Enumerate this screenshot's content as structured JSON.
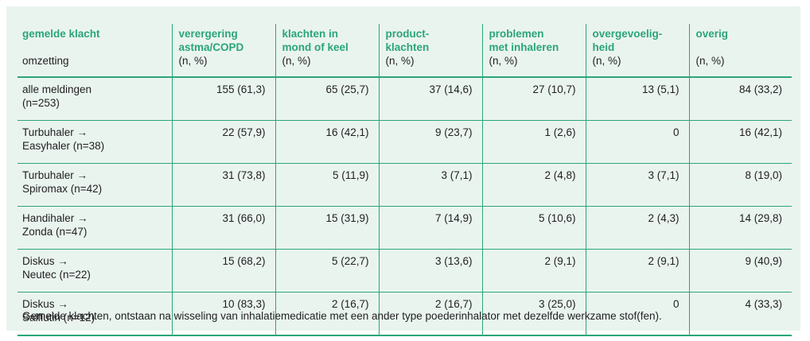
{
  "header": {
    "col0_label": "gemelde klacht",
    "col0_sub": "omzetting",
    "columns": [
      {
        "label_line1": "verergering",
        "label_line2": "astma/COPD",
        "unit": "(n, %)"
      },
      {
        "label_line1": "klachten in",
        "label_line2": "mond of keel",
        "unit": "(n, %)"
      },
      {
        "label_line1": "product-",
        "label_line2": "klachten",
        "unit": "(n, %)"
      },
      {
        "label_line1": "problemen",
        "label_line2": "met inhaleren",
        "unit": "(n, %)"
      },
      {
        "label_line1": "overgevoelig-",
        "label_line2": "heid",
        "unit": "(n, %)"
      },
      {
        "label_line1": "overig",
        "label_line2": "",
        "unit": "(n, %)"
      }
    ]
  },
  "rows": [
    {
      "line1": "alle meldingen",
      "line2": "(n=253)",
      "values": [
        "155 (61,3)",
        "65 (25,7)",
        "37 (14,6)",
        "27 (10,7)",
        "13 (5,1)",
        "84 (33,2)"
      ]
    },
    {
      "line1": "Turbuhaler →",
      "line2": "Easyhaler (n=38)",
      "values": [
        "22 (57,9)",
        "16 (42,1)",
        "9 (23,7)",
        "1 (2,6)",
        "0",
        "16 (42,1)"
      ]
    },
    {
      "line1": "Turbuhaler →",
      "line2": "Spiromax (n=42)",
      "values": [
        "31 (73,8)",
        "5 (11,9)",
        "3 (7,1)",
        "2 (4,8)",
        "3 (7,1)",
        "8 (19,0)"
      ]
    },
    {
      "line1": "Handihaler →",
      "line2": "Zonda (n=47)",
      "values": [
        "31 (66,0)",
        "15 (31,9)",
        "7 (14,9)",
        "5 (10,6)",
        "2 (4,3)",
        "14 (29,8)"
      ]
    },
    {
      "line1": "Diskus →",
      "line2": "Neutec (n=22)",
      "values": [
        "15 (68,2)",
        "5 (22,7)",
        "3 (13,6)",
        "2 (9,1)",
        "2 (9,1)",
        "9 (40,9)"
      ]
    },
    {
      "line1": "Diskus →",
      "line2": "Salflutin (n=12)",
      "values": [
        "10 (83,3)",
        "2 (16,7)",
        "2 (16,7)",
        "3 (25,0)",
        "0",
        "4 (33,3)"
      ]
    }
  ],
  "caption": "Gemelde klachten, ontstaan na wisseling van inhalatiemedicatie met een ander type poederinhalator met dezelfde werkzame stof(fen).",
  "colors": {
    "accent": "#2aa57a",
    "background": "#eaf4ef"
  }
}
